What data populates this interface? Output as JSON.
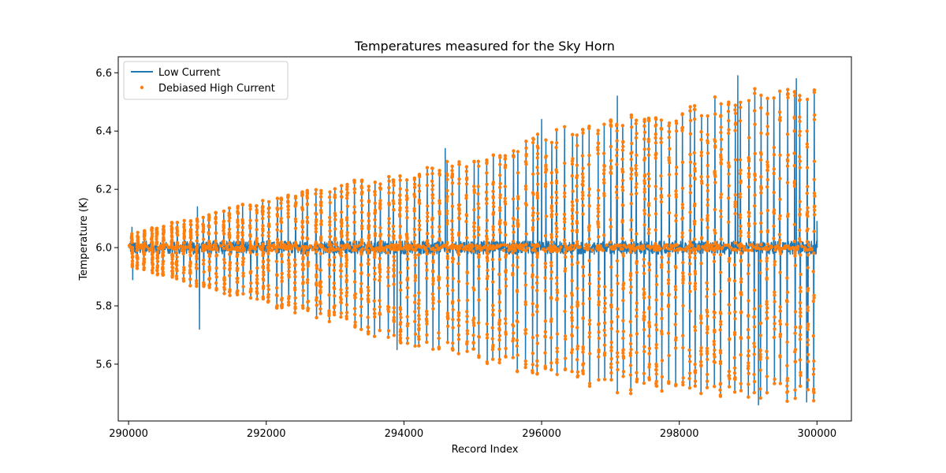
{
  "chart_data": {
    "type": "line",
    "title": "Temperatures measured for the Sky Horn",
    "xlabel": "Record Index",
    "ylabel": "Temperature (K)",
    "xlim": [
      289850,
      300500
    ],
    "ylim": [
      5.405,
      6.655
    ],
    "xticks": [
      290000,
      292000,
      294000,
      296000,
      298000,
      300000
    ],
    "yticks": [
      5.6,
      5.8,
      6.0,
      6.2,
      6.4,
      6.6
    ],
    "grid": false,
    "legend": "top-left",
    "baseline": 6.0,
    "series": [
      {
        "name": "Low Current",
        "style": "line",
        "color": "#1f77b4",
        "description_points": [
          {
            "x": 290050,
            "y": 6.07
          },
          {
            "x": 290060,
            "y": 5.89
          },
          {
            "x": 291030,
            "y": 5.72
          },
          {
            "x": 291000,
            "y": 6.14
          },
          {
            "x": 293900,
            "y": 5.65
          },
          {
            "x": 294600,
            "y": 6.34
          },
          {
            "x": 296000,
            "y": 6.44
          },
          {
            "x": 297100,
            "y": 6.52
          },
          {
            "x": 298850,
            "y": 6.59
          },
          {
            "x": 299150,
            "y": 5.46
          },
          {
            "x": 299700,
            "y": 6.58
          },
          {
            "x": 299850,
            "y": 5.47
          },
          {
            "x": 300000,
            "y": 6.09
          }
        ]
      },
      {
        "name": "Debiased High Current",
        "style": "scatter",
        "color": "#ff7f0e"
      }
    ],
    "envelope": {
      "x": [
        290000,
        291000,
        292000,
        293000,
        294000,
        295000,
        296000,
        297000,
        298000,
        299000,
        300000
      ],
      "upper": [
        6.05,
        6.11,
        6.17,
        6.22,
        6.26,
        6.32,
        6.4,
        6.45,
        6.49,
        6.55,
        6.58
      ],
      "lower": [
        5.93,
        5.86,
        5.8,
        5.74,
        5.66,
        5.61,
        5.55,
        5.5,
        5.48,
        5.47,
        5.47
      ]
    }
  }
}
